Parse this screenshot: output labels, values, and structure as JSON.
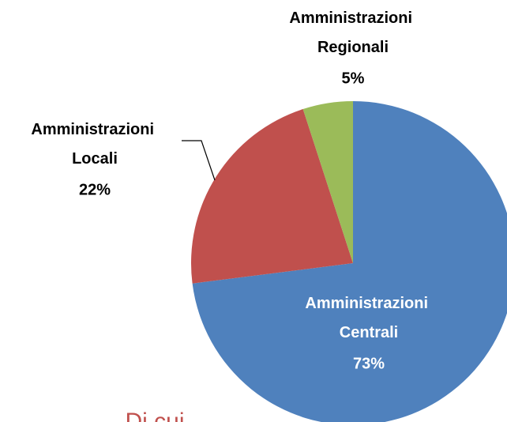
{
  "chart_data": {
    "type": "pie",
    "categories": [
      "Amministrazioni Centrali",
      "Amministrazioni Locali",
      "Amministrazioni Regionali"
    ],
    "values": [
      73,
      22,
      5
    ],
    "value_labels": [
      "73%",
      "22%",
      "5%"
    ],
    "colors": [
      "#4f81bd",
      "#c0504d",
      "#9bbb59"
    ]
  },
  "footer_text": "Di cui"
}
